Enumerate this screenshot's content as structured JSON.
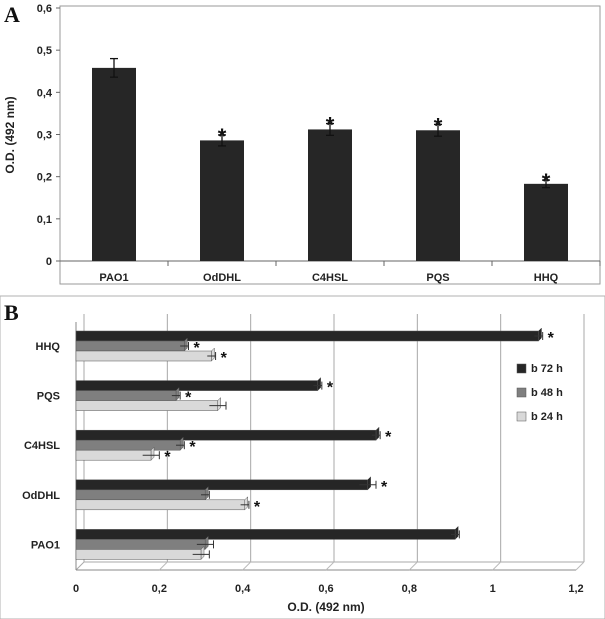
{
  "chart_data": [
    {
      "panel": "A",
      "type": "bar",
      "orientation": "vertical",
      "categories": [
        "PAO1",
        "OdDHL",
        "C4HSL",
        "PQS",
        "HHQ"
      ],
      "values": [
        0.458,
        0.286,
        0.312,
        0.31,
        0.183
      ],
      "errors": [
        0.022,
        0.013,
        0.014,
        0.014,
        0.009
      ],
      "significant": [
        false,
        true,
        true,
        true,
        true
      ],
      "marker": "*",
      "ylabel": "O.D. (492 nm)",
      "xlabel": "",
      "ylim": [
        0,
        0.6
      ],
      "yticks": [
        "0",
        "0,1",
        "0,2",
        "0,3",
        "0,4",
        "0,5",
        "0,6"
      ],
      "color": "#262626"
    },
    {
      "panel": "B",
      "type": "bar",
      "orientation": "horizontal",
      "categories": [
        "HHQ",
        "PQS",
        "C4HSL",
        "OdDHL",
        "PAO1"
      ],
      "series": [
        {
          "name": "b 72 h",
          "color": "#262626",
          "values": [
            1.11,
            0.58,
            0.72,
            0.7,
            0.91
          ],
          "errors": [
            0.01,
            0.01,
            0.01,
            0.02,
            0.01
          ],
          "significant": [
            true,
            true,
            true,
            true,
            false
          ]
        },
        {
          "name": "b 48 h",
          "color": "#7f7f7f",
          "values": [
            0.26,
            0.24,
            0.25,
            0.31,
            0.31
          ],
          "errors": [
            0.01,
            0.01,
            0.01,
            0.01,
            0.02
          ],
          "significant": [
            true,
            true,
            true,
            false,
            false
          ]
        },
        {
          "name": "b 24 h",
          "color": "#d9d9d9",
          "values": [
            0.325,
            0.34,
            0.18,
            0.405,
            0.3
          ],
          "errors": [
            0.01,
            0.02,
            0.02,
            0.01,
            0.02
          ],
          "significant": [
            true,
            false,
            true,
            true,
            false
          ]
        }
      ],
      "marker": "*",
      "xlabel": "O.D. (492 nm)",
      "ylabel": "",
      "xlim": [
        0,
        1.2
      ],
      "xticks": [
        "0",
        "0,2",
        "0,4",
        "0,6",
        "0,8",
        "1",
        "1,2"
      ],
      "legend": "right"
    }
  ]
}
